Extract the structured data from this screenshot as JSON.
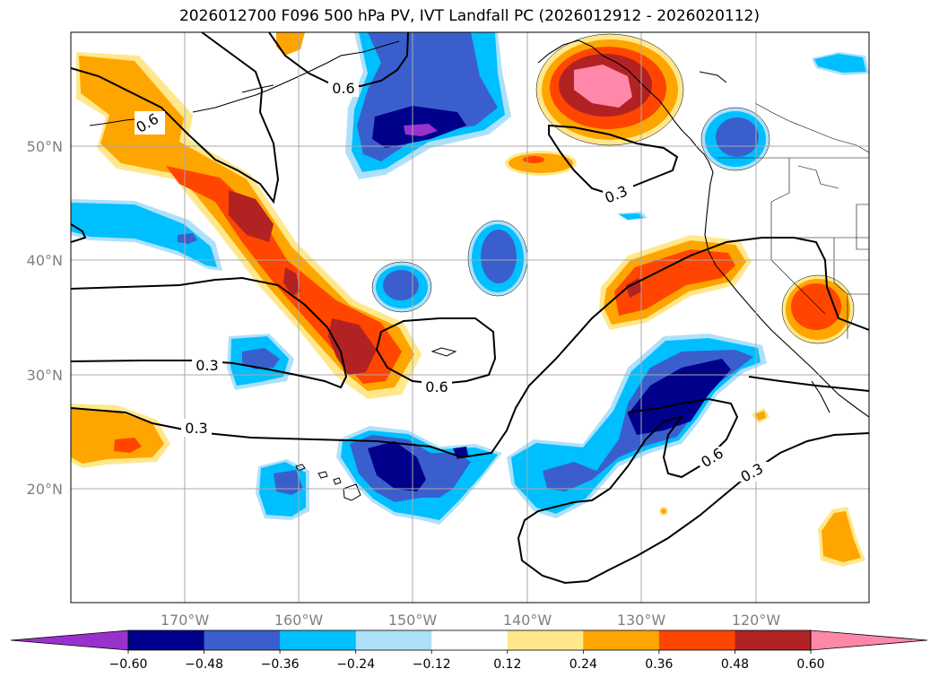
{
  "title": "2026012700 F096 500 hPa PV, IVT Landfall PC (2026012912 - 2026020112)",
  "map": {
    "lon_ticks": [
      "170°W",
      "160°W",
      "150°W",
      "140°W",
      "130°W",
      "120°W"
    ],
    "lat_ticks": [
      "50°N",
      "40°N",
      "30°N",
      "20°N"
    ],
    "contour_labels": [
      "0.6",
      "0.6",
      "0.3",
      "0.3",
      "0.3",
      "0.6",
      "0.6",
      "0.3"
    ]
  },
  "colorbar": {
    "ticks": [
      "−0.60",
      "−0.48",
      "−0.36",
      "−0.24",
      "−0.12",
      "0.12",
      "0.24",
      "0.36",
      "0.48",
      "0.60"
    ],
    "colors": [
      "#9932CC",
      "#00008B",
      "#3A5FCD",
      "#00BFFF",
      "#ADE1FA",
      "#FFFFFF",
      "#FFE88C",
      "#FFA500",
      "#FF4500",
      "#B22222",
      "#FF88AA"
    ]
  },
  "palette": {
    "n5": "#9932CC",
    "n4": "#00008B",
    "n3": "#3A5FCD",
    "n2": "#00BFFF",
    "n1": "#ADE1FA",
    "p1": "#FFE88C",
    "p2": "#FFA500",
    "p3": "#FF4500",
    "p4": "#B22222",
    "p5": "#FF88AA"
  }
}
